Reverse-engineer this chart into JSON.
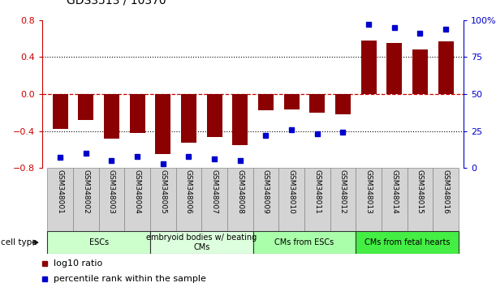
{
  "title": "GDS3513 / 10370",
  "samples": [
    "GSM348001",
    "GSM348002",
    "GSM348003",
    "GSM348004",
    "GSM348005",
    "GSM348006",
    "GSM348007",
    "GSM348008",
    "GSM348009",
    "GSM348010",
    "GSM348011",
    "GSM348012",
    "GSM348013",
    "GSM348014",
    "GSM348015",
    "GSM348016"
  ],
  "log10_ratio": [
    -0.38,
    -0.28,
    -0.48,
    -0.42,
    -0.65,
    -0.53,
    -0.47,
    -0.55,
    -0.18,
    -0.17,
    -0.2,
    -0.22,
    0.58,
    0.55,
    0.48,
    0.57
  ],
  "percentile_rank": [
    7,
    10,
    5,
    8,
    3,
    8,
    6,
    5,
    22,
    26,
    23,
    24,
    97,
    95,
    91,
    94
  ],
  "cell_type_groups": [
    {
      "label": "ESCs",
      "start": 0,
      "end": 3,
      "color": "#ccffcc"
    },
    {
      "label": "embryoid bodies w/ beating\nCMs",
      "start": 4,
      "end": 7,
      "color": "#ddffdd"
    },
    {
      "label": "CMs from ESCs",
      "start": 8,
      "end": 11,
      "color": "#aaffaa"
    },
    {
      "label": "CMs from fetal hearts",
      "start": 12,
      "end": 15,
      "color": "#55ee55"
    }
  ],
  "bar_color": "#8B0000",
  "dot_color": "#0000CC",
  "left_ylim": [
    -0.8,
    0.8
  ],
  "right_ylim": [
    0,
    100
  ],
  "left_yticks": [
    -0.8,
    -0.4,
    0,
    0.4,
    0.8
  ],
  "right_yticks": [
    0,
    25,
    50,
    75,
    100
  ],
  "right_yticklabels": [
    "0",
    "25",
    "50",
    "75",
    "100%"
  ]
}
